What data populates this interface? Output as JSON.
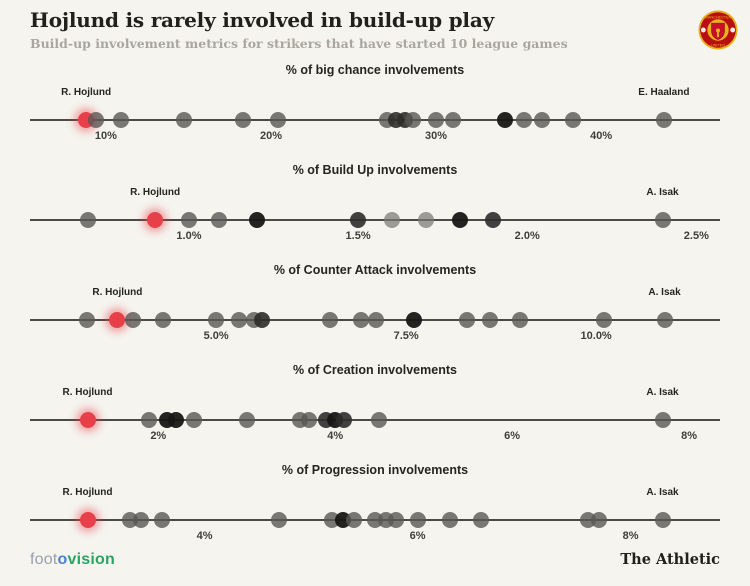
{
  "header": {
    "title": "Hojlund is rarely involved in build-up play",
    "subtitle": "Build-up involvement metrics for strikers that have started 10 league games",
    "club_badge": "manchester-united-crest"
  },
  "footer": {
    "logo_foot": "foot",
    "logo_o": "o",
    "logo_vision": "vision",
    "brand": "The Athletic"
  },
  "colors": {
    "background": "#f5f4ef",
    "axis": "#4c4a45",
    "accent_red": "#e8404a",
    "tones": {
      "gray": "rgba(90,88,84,0.80)",
      "light": "rgba(122,120,114,0.72)",
      "dark": "rgba(48,46,43,0.90)",
      "black": "rgba(24,23,21,0.95)",
      "red": "#e8404a"
    }
  },
  "chart_data": [
    {
      "type": "scatter",
      "title": "% of big chance involvements",
      "xlabel": "",
      "ylabel": "",
      "grid": false,
      "xlim": [
        5.4,
        47.2
      ],
      "ticks": [
        {
          "label": "10%",
          "x": 10
        },
        {
          "label": "20%",
          "x": 20
        },
        {
          "label": "30%",
          "x": 30
        },
        {
          "label": "40%",
          "x": 40
        }
      ],
      "points": [
        {
          "x": 8.8,
          "tone": "red",
          "label": "R. Hojlund"
        },
        {
          "x": 9.4,
          "tone": "gray"
        },
        {
          "x": 10.9,
          "tone": "gray"
        },
        {
          "x": 14.7,
          "tone": "gray"
        },
        {
          "x": 18.3,
          "tone": "gray"
        },
        {
          "x": 20.4,
          "tone": "gray"
        },
        {
          "x": 27.0,
          "tone": "gray"
        },
        {
          "x": 27.6,
          "tone": "dark"
        },
        {
          "x": 28.1,
          "tone": "dark"
        },
        {
          "x": 28.6,
          "tone": "gray"
        },
        {
          "x": 30.0,
          "tone": "gray"
        },
        {
          "x": 31.0,
          "tone": "gray"
        },
        {
          "x": 34.2,
          "tone": "black"
        },
        {
          "x": 35.3,
          "tone": "gray"
        },
        {
          "x": 36.4,
          "tone": "gray"
        },
        {
          "x": 38.3,
          "tone": "gray"
        },
        {
          "x": 43.8,
          "tone": "gray",
          "label": "E. Haaland"
        }
      ]
    },
    {
      "type": "scatter",
      "title": "% of Build Up involvements",
      "xlabel": "",
      "ylabel": "",
      "grid": false,
      "xlim": [
        0.53,
        2.57
      ],
      "ticks": [
        {
          "label": "1.0%",
          "x": 1.0
        },
        {
          "label": "1.5%",
          "x": 1.5
        },
        {
          "label": "2.0%",
          "x": 2.0
        },
        {
          "label": "2.5%",
          "x": 2.5
        }
      ],
      "points": [
        {
          "x": 0.7,
          "tone": "gray"
        },
        {
          "x": 0.9,
          "tone": "red",
          "label": "R. Hojlund"
        },
        {
          "x": 1.0,
          "tone": "gray"
        },
        {
          "x": 1.09,
          "tone": "gray"
        },
        {
          "x": 1.2,
          "tone": "black"
        },
        {
          "x": 1.5,
          "tone": "dark"
        },
        {
          "x": 1.6,
          "tone": "light"
        },
        {
          "x": 1.7,
          "tone": "light"
        },
        {
          "x": 1.8,
          "tone": "black"
        },
        {
          "x": 1.9,
          "tone": "dark"
        },
        {
          "x": 2.4,
          "tone": "gray",
          "label": "A. Isak"
        }
      ]
    },
    {
      "type": "scatter",
      "title": "% of Counter Attack involvements",
      "xlabel": "",
      "ylabel": "",
      "grid": false,
      "xlim": [
        2.55,
        11.63
      ],
      "ticks": [
        {
          "label": "5.0%",
          "x": 5.0
        },
        {
          "label": "7.5%",
          "x": 7.5
        },
        {
          "label": "10.0%",
          "x": 10.0
        }
      ],
      "points": [
        {
          "x": 3.3,
          "tone": "gray"
        },
        {
          "x": 3.7,
          "tone": "red",
          "label": "R. Hojlund"
        },
        {
          "x": 3.9,
          "tone": "gray"
        },
        {
          "x": 4.3,
          "tone": "gray"
        },
        {
          "x": 5.0,
          "tone": "gray"
        },
        {
          "x": 5.3,
          "tone": "gray"
        },
        {
          "x": 5.5,
          "tone": "gray"
        },
        {
          "x": 5.6,
          "tone": "dark"
        },
        {
          "x": 6.5,
          "tone": "gray"
        },
        {
          "x": 6.9,
          "tone": "gray"
        },
        {
          "x": 7.1,
          "tone": "gray"
        },
        {
          "x": 7.6,
          "tone": "black"
        },
        {
          "x": 8.3,
          "tone": "gray"
        },
        {
          "x": 8.6,
          "tone": "gray"
        },
        {
          "x": 9.0,
          "tone": "gray"
        },
        {
          "x": 10.1,
          "tone": "gray"
        },
        {
          "x": 10.9,
          "tone": "gray",
          "label": "A. Isak"
        }
      ]
    },
    {
      "type": "scatter",
      "title": "% of Creation involvements",
      "xlabel": "",
      "ylabel": "",
      "grid": false,
      "xlim": [
        0.55,
        8.35
      ],
      "ticks": [
        {
          "label": "2%",
          "x": 2
        },
        {
          "label": "4%",
          "x": 4
        },
        {
          "label": "6%",
          "x": 6
        },
        {
          "label": "8%",
          "x": 8
        }
      ],
      "points": [
        {
          "x": 1.2,
          "tone": "red",
          "label": "R. Hojlund"
        },
        {
          "x": 1.9,
          "tone": "gray"
        },
        {
          "x": 2.1,
          "tone": "black"
        },
        {
          "x": 2.2,
          "tone": "black"
        },
        {
          "x": 2.4,
          "tone": "gray"
        },
        {
          "x": 3.0,
          "tone": "gray"
        },
        {
          "x": 3.6,
          "tone": "gray"
        },
        {
          "x": 3.7,
          "tone": "gray"
        },
        {
          "x": 3.9,
          "tone": "dark"
        },
        {
          "x": 4.0,
          "tone": "black"
        },
        {
          "x": 4.1,
          "tone": "dark"
        },
        {
          "x": 4.5,
          "tone": "gray"
        },
        {
          "x": 7.7,
          "tone": "gray",
          "label": "A. Isak"
        }
      ]
    },
    {
      "type": "scatter",
      "title": "% of Progression involvements",
      "xlabel": "",
      "ylabel": "",
      "grid": false,
      "xlim": [
        2.36,
        8.84
      ],
      "ticks": [
        {
          "label": "4%",
          "x": 4
        },
        {
          "label": "6%",
          "x": 6
        },
        {
          "label": "8%",
          "x": 8
        }
      ],
      "points": [
        {
          "x": 2.9,
          "tone": "red",
          "label": "R. Hojlund"
        },
        {
          "x": 3.3,
          "tone": "gray"
        },
        {
          "x": 3.4,
          "tone": "gray"
        },
        {
          "x": 3.6,
          "tone": "gray"
        },
        {
          "x": 4.7,
          "tone": "gray"
        },
        {
          "x": 5.2,
          "tone": "gray"
        },
        {
          "x": 5.3,
          "tone": "black"
        },
        {
          "x": 5.4,
          "tone": "gray"
        },
        {
          "x": 5.6,
          "tone": "gray"
        },
        {
          "x": 5.7,
          "tone": "gray"
        },
        {
          "x": 5.8,
          "tone": "gray"
        },
        {
          "x": 6.0,
          "tone": "gray"
        },
        {
          "x": 6.3,
          "tone": "gray"
        },
        {
          "x": 6.6,
          "tone": "gray"
        },
        {
          "x": 7.6,
          "tone": "gray"
        },
        {
          "x": 7.7,
          "tone": "gray"
        },
        {
          "x": 8.3,
          "tone": "gray",
          "label": "A. Isak"
        }
      ]
    }
  ]
}
